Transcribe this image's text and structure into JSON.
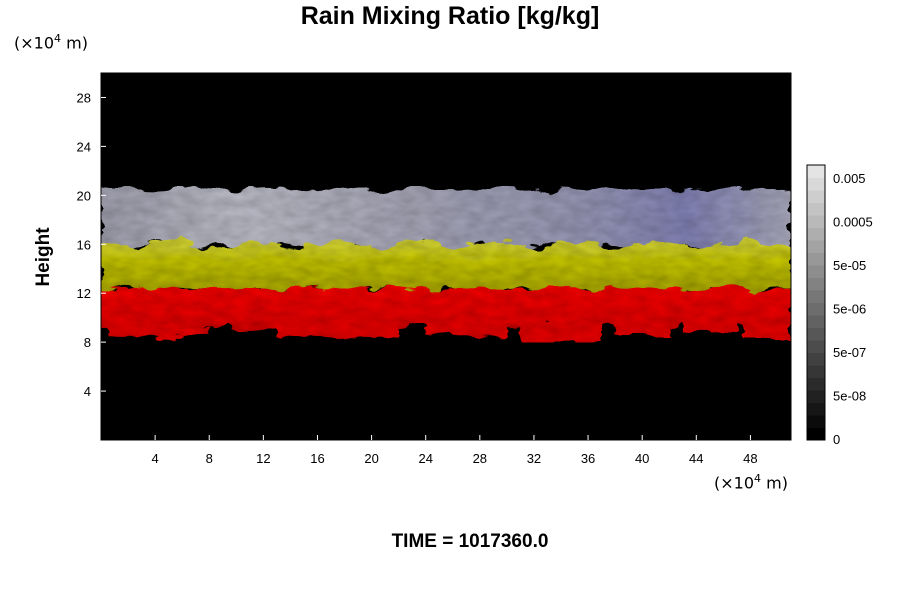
{
  "chart_data": {
    "type": "heatmap",
    "title": "Rain Mixing Ratio [kg/kg]",
    "ylabel": "Height",
    "xunit": "(×10",
    "yunit": "(×10",
    "unit_exp": "4",
    "unit_m": " m)",
    "footer": "TIME = 1017360.0",
    "xlim": [
      0,
      51
    ],
    "ylim": [
      0,
      30
    ],
    "x_ticks": [
      4,
      8,
      12,
      16,
      20,
      24,
      28,
      32,
      36,
      40,
      44,
      48
    ],
    "y_ticks": [
      4,
      8,
      12,
      16,
      20,
      24,
      28
    ],
    "x_tick_labels": [
      "4",
      "8",
      "12",
      "16",
      "20",
      "24",
      "28",
      "32",
      "36",
      "40",
      "44",
      "48"
    ],
    "y_tick_labels": [
      "4",
      "8",
      "12",
      "16",
      "20",
      "24",
      "28"
    ],
    "colorbar": {
      "tick_labels": [
        "0.005",
        "0.0005",
        "5e-05",
        "5e-06",
        "5e-07",
        "5e-08",
        "0"
      ],
      "levels": 22,
      "bottom_color": "#000000",
      "top_color": "#e4e4e4"
    },
    "bands": [
      {
        "name_hidden": "upper",
        "y_bottom": 15.8,
        "y_top": 20.5,
        "color": "#b8b8c8"
      },
      {
        "name_hidden": "middle",
        "y_bottom": 12.3,
        "y_top": 16.0,
        "color": "#c8c400"
      },
      {
        "name_hidden": "lower",
        "y_bottom": 8.2,
        "y_top": 12.4,
        "color": "#f00000"
      }
    ],
    "background_color": "#000000"
  }
}
